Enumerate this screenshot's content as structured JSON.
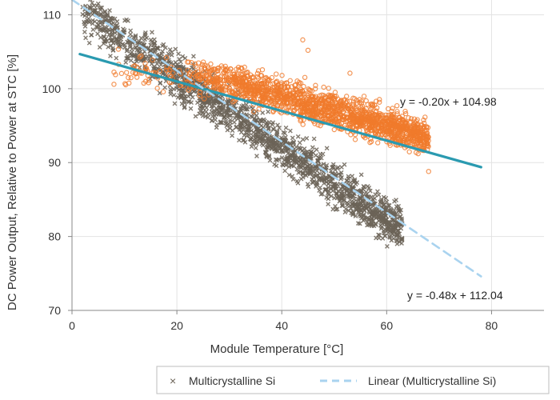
{
  "chart_data": {
    "type": "scatter",
    "title": "",
    "xlabel": "Module Temperature [°C]",
    "ylabel": "DC Power Output, Relative to Power at STC [%]",
    "xlim": [
      0,
      90
    ],
    "ylim": [
      70,
      112
    ],
    "xticks": [
      "0",
      "20",
      "40",
      "60",
      "80"
    ],
    "yticks": [
      "70",
      "80",
      "90",
      "100",
      "110"
    ],
    "grid": true,
    "legend_position": "bottom",
    "series": [
      {
        "name": "Multicrystalline Si",
        "marker": "x",
        "color": "#6b6357",
        "trend": {
          "slope": -0.48,
          "intercept": 112.04
        },
        "x_range": [
          2,
          63
        ],
        "noise": 3.5,
        "points": [
          [
            3,
            110.5
          ],
          [
            5,
            111.5
          ],
          [
            6,
            109.8
          ],
          [
            8,
            108.2
          ],
          [
            10,
            107.9
          ],
          [
            12,
            106.5
          ],
          [
            15,
            105.2
          ],
          [
            18,
            103.4
          ],
          [
            20,
            102.8
          ],
          [
            24,
            100.6
          ],
          [
            28,
            98.9
          ],
          [
            31,
            97.2
          ],
          [
            35,
            95.4
          ],
          [
            40,
            92.8
          ],
          [
            44,
            90.9
          ],
          [
            48,
            88.7
          ],
          [
            52,
            86.8
          ],
          [
            55,
            85.1
          ],
          [
            58,
            83.6
          ],
          [
            60,
            82.3
          ],
          [
            62,
            80.1
          ],
          [
            62,
            79.0
          ]
        ]
      },
      {
        "name": "",
        "marker": "o",
        "color": "#f07a2c",
        "trend": {
          "slope": -0.2,
          "intercept": 104.98
        },
        "x_range": [
          8,
          68
        ],
        "noise": 3.0,
        "points": [
          [
            8,
            100.6
          ],
          [
            12,
            103.1
          ],
          [
            18,
            104.2
          ],
          [
            22,
            103.6
          ],
          [
            30,
            102.4
          ],
          [
            36,
            101.8
          ],
          [
            44,
            106.6
          ],
          [
            45,
            105.2
          ],
          [
            48,
            100.2
          ],
          [
            53,
            102.1
          ],
          [
            58,
            98.3
          ],
          [
            62,
            95.1
          ],
          [
            65,
            93.2
          ],
          [
            68,
            88.8
          ],
          [
            66,
            91.2
          ]
        ]
      }
    ],
    "trendlines": [
      {
        "label": "y = -0.20x + 104.98",
        "slope": -0.2,
        "intercept": 104.98,
        "x": [
          1.5,
          78
        ],
        "color": "#2a9ab0",
        "style": "solid"
      },
      {
        "label": "y = -0.48x + 112.04",
        "slope": -0.48,
        "intercept": 112.04,
        "x": [
          0,
          78
        ],
        "color": "#a9d3ef",
        "style": "dashed"
      }
    ],
    "legend": [
      {
        "marker": "×",
        "label": "Multicrystalline Si"
      },
      {
        "marker": "line-dashed",
        "label": "Linear (Multicrystalline Si)"
      }
    ]
  }
}
